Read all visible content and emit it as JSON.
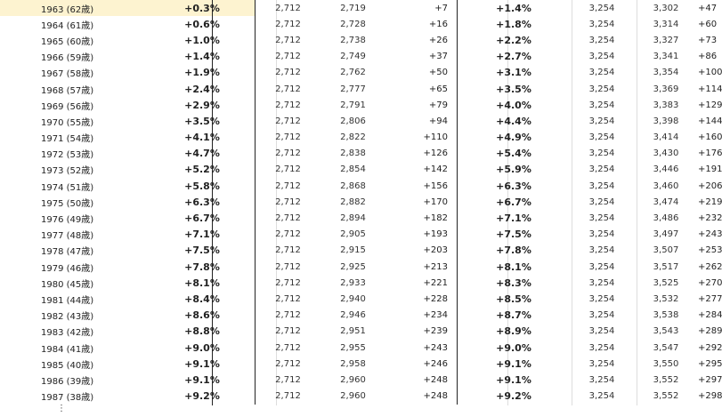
{
  "rows": [
    {
      "year": "1963 (62歳)",
      "p1": "+0.3%",
      "a": "2,712",
      "b": "2,719",
      "d1": "+7",
      "p2": "+1.4%",
      "c": "3,254",
      "e": "3,302",
      "d2": "+47",
      "hl": true
    },
    {
      "year": "1964 (61歳)",
      "p1": "+0.6%",
      "a": "2,712",
      "b": "2,728",
      "d1": "+16",
      "p2": "+1.8%",
      "c": "3,254",
      "e": "3,314",
      "d2": "+60"
    },
    {
      "year": "1965 (60歳)",
      "p1": "+1.0%",
      "a": "2,712",
      "b": "2,738",
      "d1": "+26",
      "p2": "+2.2%",
      "c": "3,254",
      "e": "3,327",
      "d2": "+73"
    },
    {
      "year": "1966 (59歳)",
      "p1": "+1.4%",
      "a": "2,712",
      "b": "2,749",
      "d1": "+37",
      "p2": "+2.7%",
      "c": "3,254",
      "e": "3,341",
      "d2": "+86"
    },
    {
      "year": "1967 (58歳)",
      "p1": "+1.9%",
      "a": "2,712",
      "b": "2,762",
      "d1": "+50",
      "p2": "+3.1%",
      "c": "3,254",
      "e": "3,354",
      "d2": "+100"
    },
    {
      "year": "1968 (57歳)",
      "p1": "+2.4%",
      "a": "2,712",
      "b": "2,777",
      "d1": "+65",
      "p2": "+3.5%",
      "c": "3,254",
      "e": "3,369",
      "d2": "+114"
    },
    {
      "year": "1969 (56歳)",
      "p1": "+2.9%",
      "a": "2,712",
      "b": "2,791",
      "d1": "+79",
      "p2": "+4.0%",
      "c": "3,254",
      "e": "3,383",
      "d2": "+129"
    },
    {
      "year": "1970 (55歳)",
      "p1": "+3.5%",
      "a": "2,712",
      "b": "2,806",
      "d1": "+94",
      "p2": "+4.4%",
      "c": "3,254",
      "e": "3,398",
      "d2": "+144"
    },
    {
      "year": "1971 (54歳)",
      "p1": "+4.1%",
      "a": "2,712",
      "b": "2,822",
      "d1": "+110",
      "p2": "+4.9%",
      "c": "3,254",
      "e": "3,414",
      "d2": "+160"
    },
    {
      "year": "1972 (53歳)",
      "p1": "+4.7%",
      "a": "2,712",
      "b": "2,838",
      "d1": "+126",
      "p2": "+5.4%",
      "c": "3,254",
      "e": "3,430",
      "d2": "+176"
    },
    {
      "year": "1973 (52歳)",
      "p1": "+5.2%",
      "a": "2,712",
      "b": "2,854",
      "d1": "+142",
      "p2": "+5.9%",
      "c": "3,254",
      "e": "3,446",
      "d2": "+191"
    },
    {
      "year": "1974 (51歳)",
      "p1": "+5.8%",
      "a": "2,712",
      "b": "2,868",
      "d1": "+156",
      "p2": "+6.3%",
      "c": "3,254",
      "e": "3,460",
      "d2": "+206"
    },
    {
      "year": "1975 (50歳)",
      "p1": "+6.3%",
      "a": "2,712",
      "b": "2,882",
      "d1": "+170",
      "p2": "+6.7%",
      "c": "3,254",
      "e": "3,474",
      "d2": "+219"
    },
    {
      "year": "1976 (49歳)",
      "p1": "+6.7%",
      "a": "2,712",
      "b": "2,894",
      "d1": "+182",
      "p2": "+7.1%",
      "c": "3,254",
      "e": "3,486",
      "d2": "+232"
    },
    {
      "year": "1977 (48歳)",
      "p1": "+7.1%",
      "a": "2,712",
      "b": "2,905",
      "d1": "+193",
      "p2": "+7.5%",
      "c": "3,254",
      "e": "3,497",
      "d2": "+243"
    },
    {
      "year": "1978 (47歳)",
      "p1": "+7.5%",
      "a": "2,712",
      "b": "2,915",
      "d1": "+203",
      "p2": "+7.8%",
      "c": "3,254",
      "e": "3,507",
      "d2": "+253"
    },
    {
      "year": "1979 (46歳)",
      "p1": "+7.8%",
      "a": "2,712",
      "b": "2,925",
      "d1": "+213",
      "p2": "+8.1%",
      "c": "3,254",
      "e": "3,517",
      "d2": "+262"
    },
    {
      "year": "1980 (45歳)",
      "p1": "+8.1%",
      "a": "2,712",
      "b": "2,933",
      "d1": "+221",
      "p2": "+8.3%",
      "c": "3,254",
      "e": "3,525",
      "d2": "+270"
    },
    {
      "year": "1981 (44歳)",
      "p1": "+8.4%",
      "a": "2,712",
      "b": "2,940",
      "d1": "+228",
      "p2": "+8.5%",
      "c": "3,254",
      "e": "3,532",
      "d2": "+277"
    },
    {
      "year": "1982 (43歳)",
      "p1": "+8.6%",
      "a": "2,712",
      "b": "2,946",
      "d1": "+234",
      "p2": "+8.7%",
      "c": "3,254",
      "e": "3,538",
      "d2": "+284"
    },
    {
      "year": "1983 (42歳)",
      "p1": "+8.8%",
      "a": "2,712",
      "b": "2,951",
      "d1": "+239",
      "p2": "+8.9%",
      "c": "3,254",
      "e": "3,543",
      "d2": "+289"
    },
    {
      "year": "1984 (41歳)",
      "p1": "+9.0%",
      "a": "2,712",
      "b": "2,955",
      "d1": "+243",
      "p2": "+9.0%",
      "c": "3,254",
      "e": "3,547",
      "d2": "+292"
    },
    {
      "year": "1985 (40歳)",
      "p1": "+9.1%",
      "a": "2,712",
      "b": "2,958",
      "d1": "+246",
      "p2": "+9.1%",
      "c": "3,254",
      "e": "3,550",
      "d2": "+295"
    },
    {
      "year": "1986 (39歳)",
      "p1": "+9.1%",
      "a": "2,712",
      "b": "2,960",
      "d1": "+248",
      "p2": "+9.1%",
      "c": "3,254",
      "e": "3,552",
      "d2": "+297"
    },
    {
      "year": "1987 (38歳)",
      "p1": "+9.2%",
      "a": "2,712",
      "b": "2,960",
      "d1": "+248",
      "p2": "+9.2%",
      "c": "3,254",
      "e": "3,552",
      "d2": "+298"
    }
  ],
  "more_marker": "⋮",
  "highlight_color": "#fdf3d0"
}
